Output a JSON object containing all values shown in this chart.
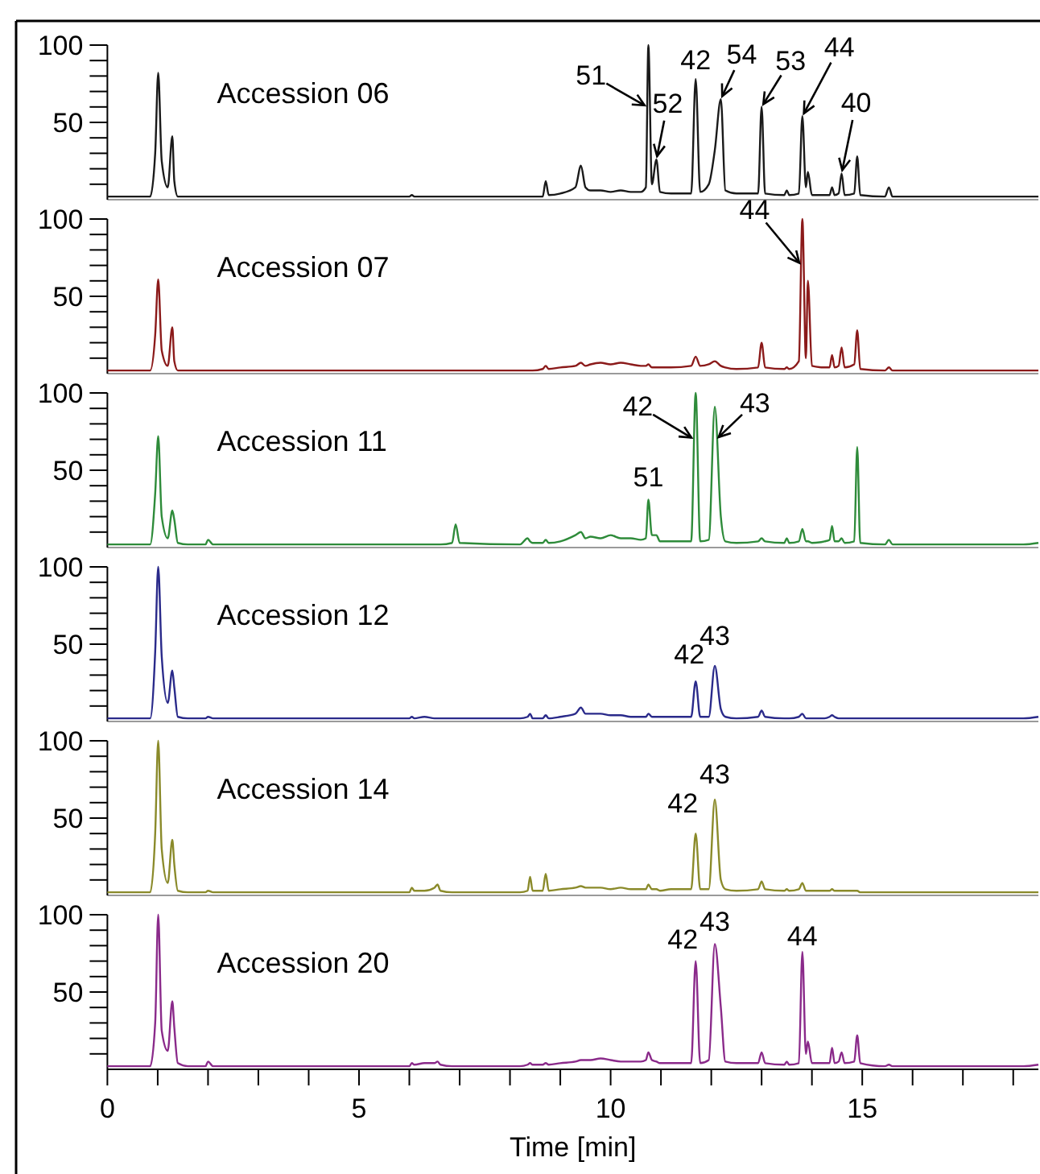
{
  "chart_data": [
    {
      "type": "line",
      "title": "Accession 06",
      "x": [
        0,
        0.85,
        0.95,
        1.01,
        1.08,
        1.2,
        1.29,
        1.33,
        1.4,
        1.6,
        1.95,
        2.0,
        2.1,
        4,
        6.0,
        6.05,
        6.1,
        6.3,
        6.5,
        6.56,
        6.62,
        6.85,
        6.92,
        7.0,
        8.2,
        8.35,
        8.4,
        8.45,
        8.65,
        8.71,
        8.77,
        9.0,
        9.3,
        9.41,
        9.5,
        9.6,
        9.8,
        10.0,
        10.2,
        10.4,
        10.6,
        10.7,
        10.75,
        10.82,
        10.91,
        10.98,
        11.2,
        11.6,
        11.69,
        11.78,
        11.95,
        12.07,
        12.19,
        12.28,
        12.5,
        12.93,
        13.0,
        13.07,
        13.45,
        13.5,
        13.55,
        13.74,
        13.81,
        13.88,
        13.92,
        14.0,
        14.25,
        14.35,
        14.4,
        14.45,
        14.53,
        14.59,
        14.65,
        14.84,
        14.9,
        14.96,
        15.45,
        15.53,
        15.6,
        16.5,
        18.2,
        18.5
      ],
      "series": [
        {
          "color": "#1a1a1a",
          "values": [
            2,
            2,
            30,
            82,
            25,
            8,
            41,
            12,
            2,
            2,
            2,
            2,
            2,
            2,
            2,
            3,
            2,
            2,
            2,
            2,
            2,
            2,
            2,
            2,
            2,
            2,
            2,
            2,
            2,
            12,
            3,
            4,
            8,
            22,
            8,
            6,
            6,
            5,
            6,
            5,
            5,
            8,
            100,
            10,
            26,
            5,
            4,
            4,
            78,
            5,
            10,
            32,
            65,
            6,
            4,
            4,
            60,
            4,
            3,
            6,
            3,
            4,
            54,
            8,
            18,
            3,
            3,
            3,
            8,
            3,
            4,
            17,
            3,
            4,
            28,
            3,
            2,
            8,
            2,
            2,
            2,
            2
          ]
        }
      ],
      "xlim": [
        0,
        18.5
      ],
      "ylim": [
        0,
        100
      ],
      "yticks": [
        {
          "value": 10,
          "label": null
        },
        {
          "value": 20,
          "label": null
        },
        {
          "value": 30,
          "label": null
        },
        {
          "value": 40,
          "label": null
        },
        {
          "value": 50,
          "label": "50"
        },
        {
          "value": 60,
          "label": null
        },
        {
          "value": 70,
          "label": null
        },
        {
          "value": 80,
          "label": null
        },
        {
          "value": 90,
          "label": null
        },
        {
          "value": 100,
          "label": "100"
        }
      ],
      "tick_labels": "y",
      "annotations": [
        {
          "text": "51",
          "x": 10.73,
          "y": 60
        },
        {
          "text": "52",
          "x": 10.91,
          "y": 26
        },
        {
          "text": "42",
          "x": 11.69,
          "y": 78
        },
        {
          "text": "54",
          "x": 12.19,
          "y": 65
        },
        {
          "text": "53",
          "x": 13.0,
          "y": 60
        },
        {
          "text": "44",
          "x": 13.81,
          "y": 54
        },
        {
          "text": "40",
          "x": 14.59,
          "y": 17
        }
      ]
    },
    {
      "type": "line",
      "title": "Accession 07",
      "x": [
        0,
        0.85,
        0.95,
        1.01,
        1.08,
        1.2,
        1.29,
        1.33,
        1.4,
        1.6,
        1.95,
        2.0,
        2.1,
        4,
        6.0,
        6.05,
        6.1,
        6.3,
        6.5,
        6.56,
        6.62,
        6.85,
        6.92,
        7.0,
        8.2,
        8.35,
        8.4,
        8.45,
        8.65,
        8.71,
        8.77,
        9.0,
        9.3,
        9.41,
        9.5,
        9.6,
        9.8,
        10.0,
        10.2,
        10.4,
        10.6,
        10.7,
        10.75,
        10.82,
        10.91,
        10.98,
        11.2,
        11.6,
        11.69,
        11.78,
        11.95,
        12.07,
        12.19,
        12.28,
        12.5,
        12.93,
        13.0,
        13.07,
        13.45,
        13.5,
        13.55,
        13.74,
        13.81,
        13.88,
        13.92,
        14.0,
        14.25,
        14.35,
        14.4,
        14.45,
        14.53,
        14.59,
        14.65,
        14.84,
        14.9,
        14.96,
        15.45,
        15.53,
        15.6,
        16.5,
        18.2,
        18.5
      ],
      "series": [
        {
          "color": "#8b1a1a",
          "values": [
            2,
            2,
            25,
            61,
            15,
            5,
            30,
            8,
            2,
            2,
            2,
            2,
            2,
            2,
            2,
            2,
            2,
            2,
            2,
            2,
            2,
            2,
            2,
            2,
            2,
            2,
            2,
            2,
            3,
            5,
            3,
            4,
            5,
            7,
            5,
            6,
            7,
            6,
            7,
            6,
            5,
            5,
            6,
            4,
            4,
            4,
            4,
            5,
            11,
            5,
            6,
            8,
            5,
            4,
            3,
            4,
            20,
            4,
            3,
            4,
            3,
            8,
            100,
            10,
            60,
            5,
            4,
            4,
            12,
            4,
            5,
            17,
            4,
            6,
            28,
            3,
            2,
            4,
            2,
            2,
            2,
            2
          ]
        }
      ],
      "xlim": [
        0,
        18.5
      ],
      "ylim": [
        0,
        100
      ],
      "yticks": [
        {
          "value": 10,
          "label": null
        },
        {
          "value": 20,
          "label": null
        },
        {
          "value": 30,
          "label": null
        },
        {
          "value": 40,
          "label": null
        },
        {
          "value": 50,
          "label": "50"
        },
        {
          "value": 60,
          "label": null
        },
        {
          "value": 70,
          "label": null
        },
        {
          "value": 80,
          "label": null
        },
        {
          "value": 90,
          "label": null
        },
        {
          "value": 100,
          "label": "100"
        }
      ],
      "tick_labels": "y",
      "annotations": [
        {
          "text": "44",
          "x": 13.79,
          "y": 70
        }
      ]
    },
    {
      "type": "line",
      "title": "Accession 11",
      "x": [
        0,
        0.85,
        0.95,
        1.01,
        1.08,
        1.2,
        1.29,
        1.33,
        1.4,
        1.6,
        1.95,
        2.0,
        2.1,
        4,
        6.0,
        6.05,
        6.1,
        6.3,
        6.5,
        6.56,
        6.62,
        6.85,
        6.92,
        7.0,
        8.2,
        8.35,
        8.4,
        8.45,
        8.65,
        8.71,
        8.77,
        9.0,
        9.3,
        9.41,
        9.5,
        9.6,
        9.8,
        10.0,
        10.2,
        10.4,
        10.6,
        10.7,
        10.75,
        10.82,
        10.91,
        10.98,
        11.2,
        11.6,
        11.69,
        11.78,
        11.95,
        12.07,
        12.19,
        12.28,
        12.5,
        12.93,
        13.0,
        13.07,
        13.45,
        13.5,
        13.55,
        13.74,
        13.81,
        13.88,
        13.92,
        14.0,
        14.25,
        14.35,
        14.4,
        14.45,
        14.53,
        14.59,
        14.65,
        14.84,
        14.9,
        14.96,
        15.45,
        15.53,
        15.6,
        16.5,
        18.2,
        18.5
      ],
      "series": [
        {
          "color": "#2e8b3a",
          "values": [
            2,
            2,
            35,
            72,
            20,
            6,
            24,
            18,
            3,
            2,
            2,
            5,
            2,
            2,
            2,
            2,
            2,
            2,
            2,
            2,
            2,
            3,
            15,
            3,
            2,
            6,
            4,
            3,
            3,
            5,
            3,
            4,
            8,
            10,
            6,
            7,
            6,
            8,
            6,
            6,
            5,
            6,
            31,
            8,
            8,
            4,
            4,
            4,
            100,
            4,
            5,
            91,
            20,
            4,
            3,
            4,
            6,
            4,
            3,
            6,
            3,
            4,
            12,
            4,
            4,
            3,
            4,
            5,
            14,
            4,
            4,
            6,
            3,
            4,
            65,
            3,
            2,
            5,
            2,
            2,
            2,
            3
          ]
        }
      ],
      "xlim": [
        0,
        18.5
      ],
      "ylim": [
        0,
        100
      ],
      "yticks": [
        {
          "value": 10,
          "label": null
        },
        {
          "value": 20,
          "label": null
        },
        {
          "value": 30,
          "label": null
        },
        {
          "value": 40,
          "label": null
        },
        {
          "value": 50,
          "label": "50"
        },
        {
          "value": 60,
          "label": null
        },
        {
          "value": 70,
          "label": null
        },
        {
          "value": 80,
          "label": null
        },
        {
          "value": 90,
          "label": null
        },
        {
          "value": 100,
          "label": "100"
        }
      ],
      "tick_labels": "y",
      "annotations": [
        {
          "text": "42",
          "x": 11.66,
          "y": 70
        },
        {
          "text": "43",
          "x": 12.1,
          "y": 70
        },
        {
          "text": "51",
          "x": 10.75,
          "y": 31
        }
      ]
    },
    {
      "type": "line",
      "title": "Accession 12",
      "x": [
        0,
        0.85,
        0.95,
        1.01,
        1.08,
        1.2,
        1.29,
        1.33,
        1.4,
        1.6,
        1.95,
        2.0,
        2.1,
        4,
        6.0,
        6.05,
        6.1,
        6.3,
        6.5,
        6.56,
        6.62,
        6.85,
        6.92,
        7.0,
        8.2,
        8.35,
        8.4,
        8.45,
        8.65,
        8.71,
        8.77,
        9.0,
        9.3,
        9.41,
        9.5,
        9.6,
        9.8,
        10.0,
        10.2,
        10.4,
        10.6,
        10.7,
        10.75,
        10.82,
        10.91,
        10.98,
        11.2,
        11.6,
        11.69,
        11.78,
        11.95,
        12.07,
        12.19,
        12.28,
        12.5,
        12.93,
        13.0,
        13.07,
        13.45,
        13.5,
        13.55,
        13.74,
        13.81,
        13.88,
        13.92,
        14.0,
        14.25,
        14.35,
        14.4,
        14.45,
        14.53,
        14.59,
        14.65,
        14.84,
        14.9,
        14.96,
        15.45,
        15.53,
        15.6,
        16.5,
        18.2,
        18.5
      ],
      "series": [
        {
          "color": "#2a2a8a",
          "values": [
            2,
            2,
            45,
            100,
            42,
            12,
            33,
            22,
            3,
            2,
            2,
            3,
            2,
            2,
            2,
            3,
            2,
            3,
            2,
            2,
            2,
            2,
            2,
            2,
            2,
            3,
            5,
            2,
            2,
            4,
            2,
            3,
            5,
            9,
            5,
            5,
            5,
            4,
            4,
            3,
            3,
            3,
            5,
            3,
            3,
            3,
            3,
            3,
            26,
            3,
            3,
            36,
            8,
            3,
            2,
            3,
            7,
            3,
            2,
            2,
            2,
            3,
            5,
            2,
            2,
            2,
            2,
            3,
            4,
            3,
            2,
            2,
            2,
            2,
            2,
            2,
            2,
            2,
            2,
            2,
            2,
            3
          ]
        }
      ],
      "xlim": [
        0,
        18.5
      ],
      "ylim": [
        0,
        100
      ],
      "yticks": [
        {
          "value": 10,
          "label": null
        },
        {
          "value": 20,
          "label": null
        },
        {
          "value": 30,
          "label": null
        },
        {
          "value": 40,
          "label": null
        },
        {
          "value": 50,
          "label": "50"
        },
        {
          "value": 60,
          "label": null
        },
        {
          "value": 70,
          "label": null
        },
        {
          "value": 80,
          "label": null
        },
        {
          "value": 90,
          "label": null
        },
        {
          "value": 100,
          "label": "100"
        }
      ],
      "tick_labels": "y",
      "annotations": [
        {
          "text": "42",
          "x": 11.69,
          "y": 26
        },
        {
          "text": "43",
          "x": 12.07,
          "y": 36
        }
      ]
    },
    {
      "type": "line",
      "title": "Accession 14",
      "x": [
        0,
        0.85,
        0.95,
        1.01,
        1.08,
        1.2,
        1.29,
        1.33,
        1.4,
        1.6,
        1.95,
        2.0,
        2.1,
        4,
        6.0,
        6.05,
        6.1,
        6.3,
        6.5,
        6.56,
        6.62,
        6.85,
        6.92,
        7.0,
        8.2,
        8.35,
        8.4,
        8.45,
        8.65,
        8.71,
        8.77,
        9.0,
        9.3,
        9.41,
        9.5,
        9.6,
        9.8,
        10.0,
        10.2,
        10.4,
        10.6,
        10.7,
        10.75,
        10.82,
        10.91,
        10.98,
        11.2,
        11.6,
        11.69,
        11.78,
        11.95,
        12.07,
        12.19,
        12.28,
        12.5,
        12.93,
        13.0,
        13.07,
        13.45,
        13.5,
        13.55,
        13.74,
        13.81,
        13.88,
        13.92,
        14.0,
        14.25,
        14.35,
        14.4,
        14.45,
        14.53,
        14.59,
        14.65,
        14.84,
        14.9,
        14.96,
        15.45,
        15.53,
        15.6,
        16.5,
        18.2,
        18.5
      ],
      "series": [
        {
          "color": "#8a8a2a",
          "values": [
            2,
            2,
            40,
            100,
            30,
            8,
            36,
            20,
            3,
            2,
            2,
            3,
            2,
            2,
            2,
            5,
            3,
            3,
            5,
            7,
            3,
            2,
            2,
            2,
            2,
            3,
            12,
            3,
            3,
            14,
            3,
            4,
            5,
            6,
            5,
            5,
            5,
            4,
            5,
            4,
            4,
            4,
            7,
            4,
            4,
            3,
            4,
            4,
            40,
            4,
            4,
            62,
            10,
            4,
            3,
            4,
            9,
            4,
            3,
            4,
            3,
            4,
            8,
            3,
            3,
            3,
            3,
            3,
            4,
            3,
            3,
            3,
            3,
            3,
            3,
            2,
            2,
            2,
            2,
            2,
            2,
            2
          ]
        }
      ],
      "xlim": [
        0,
        18.5
      ],
      "ylim": [
        0,
        100
      ],
      "yticks": [
        {
          "value": 10,
          "label": null
        },
        {
          "value": 20,
          "label": null
        },
        {
          "value": 30,
          "label": null
        },
        {
          "value": 40,
          "label": null
        },
        {
          "value": 50,
          "label": "50"
        },
        {
          "value": 60,
          "label": null
        },
        {
          "value": 70,
          "label": null
        },
        {
          "value": 80,
          "label": null
        },
        {
          "value": 90,
          "label": null
        },
        {
          "value": 100,
          "label": "100"
        }
      ],
      "tick_labels": "y",
      "annotations": [
        {
          "text": "42",
          "x": 11.69,
          "y": 40
        },
        {
          "text": "43",
          "x": 12.07,
          "y": 62
        }
      ]
    },
    {
      "type": "line",
      "title": "Accession 20",
      "xlabel": "Time [min]",
      "x": [
        0,
        0.85,
        0.95,
        1.01,
        1.08,
        1.2,
        1.29,
        1.33,
        1.4,
        1.6,
        1.95,
        2.0,
        2.1,
        4,
        6.0,
        6.05,
        6.1,
        6.3,
        6.5,
        6.56,
        6.62,
        6.85,
        6.92,
        7.0,
        8.2,
        8.35,
        8.4,
        8.45,
        8.65,
        8.71,
        8.77,
        9.0,
        9.3,
        9.41,
        9.5,
        9.6,
        9.8,
        10.0,
        10.2,
        10.4,
        10.6,
        10.7,
        10.75,
        10.82,
        10.91,
        10.98,
        11.2,
        11.6,
        11.69,
        11.78,
        11.95,
        12.07,
        12.19,
        12.28,
        12.5,
        12.93,
        13.0,
        13.07,
        13.45,
        13.5,
        13.55,
        13.74,
        13.81,
        13.88,
        13.92,
        14.0,
        14.25,
        14.35,
        14.4,
        14.45,
        14.53,
        14.59,
        14.65,
        14.84,
        14.9,
        14.96,
        15.45,
        15.53,
        15.6,
        16.5,
        18.2,
        18.5
      ],
      "series": [
        {
          "color": "#8a2a8a",
          "values": [
            2,
            2,
            30,
            100,
            25,
            12,
            44,
            27,
            4,
            2,
            2,
            5,
            2,
            2,
            2,
            4,
            3,
            4,
            4,
            5,
            3,
            2,
            2,
            2,
            2,
            3,
            4,
            3,
            3,
            4,
            3,
            4,
            5,
            6,
            6,
            6,
            7,
            6,
            5,
            5,
            5,
            6,
            11,
            6,
            5,
            4,
            4,
            4,
            70,
            4,
            6,
            81,
            40,
            5,
            4,
            4,
            11,
            4,
            3,
            5,
            3,
            4,
            76,
            10,
            18,
            4,
            4,
            4,
            14,
            4,
            5,
            11,
            4,
            5,
            22,
            4,
            2,
            3,
            2,
            2,
            2,
            3
          ]
        }
      ],
      "xlim": [
        0,
        18.5
      ],
      "xticks": [
        0,
        {
          "value": 1,
          "label": null
        },
        {
          "value": 2,
          "label": null
        },
        {
          "value": 3,
          "label": null
        },
        {
          "value": 4,
          "label": null
        },
        5,
        {
          "value": 6,
          "label": null
        },
        {
          "value": 7,
          "label": null
        },
        {
          "value": 8,
          "label": null
        },
        {
          "value": 9,
          "label": null
        },
        10,
        {
          "value": 11,
          "label": null
        },
        {
          "value": 12,
          "label": null
        },
        {
          "value": 13,
          "label": null
        },
        {
          "value": 14,
          "label": null
        },
        15,
        {
          "value": 16,
          "label": null
        },
        {
          "value": 17,
          "label": null
        },
        {
          "value": 18,
          "label": null
        }
      ],
      "ylim": [
        0,
        100
      ],
      "yticks": [
        {
          "value": 10,
          "label": null
        },
        {
          "value": 20,
          "label": null
        },
        {
          "value": 30,
          "label": null
        },
        {
          "value": 40,
          "label": null
        },
        {
          "value": 50,
          "label": "50"
        },
        {
          "value": 60,
          "label": null
        },
        {
          "value": 70,
          "label": null
        },
        {
          "value": 80,
          "label": null
        },
        {
          "value": 90,
          "label": null
        },
        {
          "value": 100,
          "label": "100"
        }
      ],
      "annotations": [
        {
          "text": "42",
          "x": 11.69,
          "y": 70
        },
        {
          "text": "43",
          "x": 12.07,
          "y": 81
        },
        {
          "text": "44",
          "x": 13.81,
          "y": 76
        }
      ]
    }
  ]
}
